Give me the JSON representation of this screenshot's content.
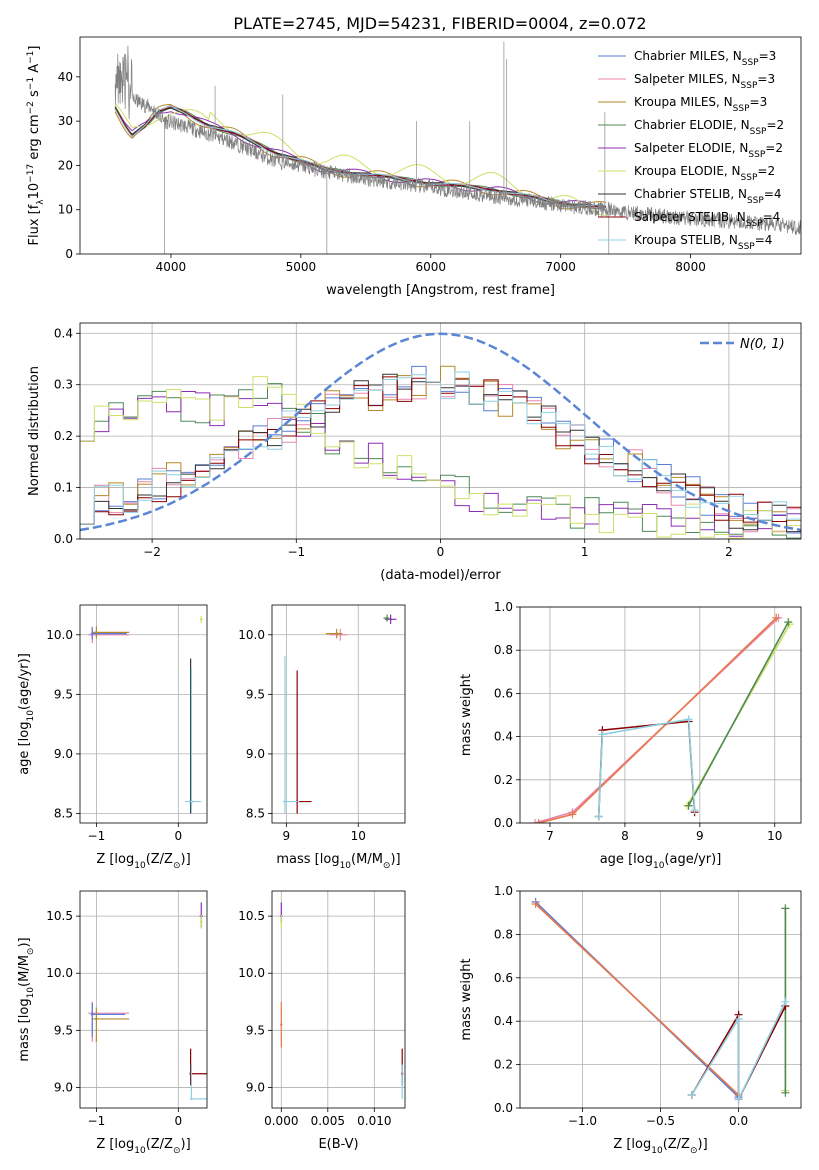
{
  "figure": {
    "title": "PLATE=2745, MJD=54231, FIBERID=0004, z=0.072"
  },
  "legend_entries": [
    {
      "label": "Chabrier MILES, N",
      "sub": "SSP",
      "suffix": "=3",
      "color": "#5b7bd5"
    },
    {
      "label": "Salpeter MILES, N",
      "sub": "SSP",
      "suffix": "=3",
      "color": "#e887b2"
    },
    {
      "label": "Kroupa MILES, N",
      "sub": "SSP",
      "suffix": "=3",
      "color": "#b58a2a"
    },
    {
      "label": "Chabrier ELODIE, N",
      "sub": "SSP",
      "suffix": "=2",
      "color": "#4f8a55"
    },
    {
      "label": "Salpeter ELODIE, N",
      "sub": "SSP",
      "suffix": "=2",
      "color": "#8e2fb3"
    },
    {
      "label": "Kroupa ELODIE, N",
      "sub": "SSP",
      "suffix": "=2",
      "color": "#cfe06a"
    },
    {
      "label": "Chabrier STELIB, N",
      "sub": "SSP",
      "suffix": "=4",
      "color": "#333333"
    },
    {
      "label": "Salpeter STELIB, N",
      "sub": "SSP",
      "suffix": "=4",
      "color": "#8b0000"
    },
    {
      "label": "Kroupa STELIB, N",
      "sub": "SSP",
      "suffix": "=4",
      "color": "#8fd0e0"
    }
  ],
  "chart_data": [
    {
      "id": "spectrum",
      "type": "line",
      "xlabel": "wavelength [Angstrom, rest frame]",
      "ylabel": "Flux [f",
      "ylabel_sub": "λ",
      "ylabel_tail": "10",
      "ylabel_sup": "−17",
      "ylabel_end": " erg cm",
      "ylabel_sup2": "−2",
      "ylabel_end2": " s",
      "ylabel_sup3": "−1",
      "ylabel_end3": " A",
      "ylabel_sup4": "−1",
      "ylabel_close": "]",
      "xlim": [
        3300,
        8850
      ],
      "ylim": [
        0,
        49
      ],
      "xticks": [
        4000,
        5000,
        6000,
        7000,
        8000
      ],
      "yticks": [
        0,
        10,
        20,
        30,
        40
      ],
      "grid": false,
      "legend": "top-right",
      "data_color": "#808080",
      "data_knots": [
        [
          3570,
          38
        ],
        [
          3700,
          35
        ],
        [
          3850,
          33
        ],
        [
          3950,
          30
        ],
        [
          4100,
          29
        ],
        [
          4300,
          27
        ],
        [
          4500,
          25
        ],
        [
          4800,
          21
        ],
        [
          5000,
          20
        ],
        [
          5200,
          18.5
        ],
        [
          5500,
          17
        ],
        [
          6000,
          15
        ],
        [
          6500,
          13
        ],
        [
          7000,
          11
        ],
        [
          7500,
          9.5
        ],
        [
          8000,
          8
        ],
        [
          8500,
          7
        ],
        [
          8850,
          6
        ]
      ],
      "model_knots": [
        [
          3570,
          33
        ],
        [
          3650,
          29
        ],
        [
          3700,
          27
        ],
        [
          3800,
          29
        ],
        [
          3900,
          32
        ],
        [
          4000,
          33
        ],
        [
          4100,
          32
        ],
        [
          4300,
          29
        ],
        [
          4500,
          27
        ],
        [
          4800,
          23
        ],
        [
          5000,
          21
        ],
        [
          5200,
          19
        ],
        [
          5500,
          18
        ],
        [
          6000,
          16
        ],
        [
          6500,
          14.5
        ],
        [
          6750,
          13
        ],
        [
          7000,
          11.5
        ],
        [
          7350,
          10.5
        ]
      ]
    },
    {
      "id": "residuals",
      "type": "histogram",
      "xlabel": "(data-model)/error",
      "ylabel": "Normed distribution",
      "xlim": [
        -2.5,
        2.5
      ],
      "ylim": [
        0,
        0.42
      ],
      "xticks": [
        -2,
        -1,
        0,
        1,
        2
      ],
      "yticks": [
        0.0,
        0.1,
        0.2,
        0.3,
        0.4
      ],
      "grid": true,
      "legend": "top-right",
      "gauss_label": "N(0, 1)",
      "gauss_color": "#5b86d4",
      "hist_elodie_knots": [
        [
          -2.5,
          0.22
        ],
        [
          -2.2,
          0.25
        ],
        [
          -2.0,
          0.28
        ],
        [
          -1.6,
          0.25
        ],
        [
          -1.2,
          0.29
        ],
        [
          -0.9,
          0.22
        ],
        [
          -0.6,
          0.17
        ],
        [
          -0.3,
          0.15
        ],
        [
          0.0,
          0.11
        ],
        [
          0.3,
          0.08
        ],
        [
          0.6,
          0.07
        ],
        [
          1.0,
          0.05
        ],
        [
          1.4,
          0.04
        ],
        [
          1.8,
          0.035
        ],
        [
          2.2,
          0.03
        ],
        [
          2.5,
          0.03
        ]
      ],
      "hist_other_knots": [
        [
          -2.5,
          0.06
        ],
        [
          -2.2,
          0.08
        ],
        [
          -2.0,
          0.1
        ],
        [
          -1.7,
          0.13
        ],
        [
          -1.4,
          0.17
        ],
        [
          -1.1,
          0.21
        ],
        [
          -0.8,
          0.25
        ],
        [
          -0.5,
          0.28
        ],
        [
          -0.2,
          0.3
        ],
        [
          0.0,
          0.31
        ],
        [
          0.3,
          0.29
        ],
        [
          0.6,
          0.25
        ],
        [
          0.9,
          0.2
        ],
        [
          1.2,
          0.16
        ],
        [
          1.5,
          0.12
        ],
        [
          1.8,
          0.08
        ],
        [
          2.1,
          0.05
        ],
        [
          2.5,
          0.04
        ]
      ]
    },
    {
      "id": "age_vs_Z",
      "type": "errorbar",
      "xlabel": "Z [log",
      "xlabel_sub": "10",
      "xlabel_mid": "(Z/Z",
      "xlabel_sub2": "⊙",
      "xlabel_end": ")]",
      "ylabel": "age  [log",
      "ylabel_sub": "10",
      "ylabel_end": "(age/yr)]",
      "xlim": [
        -1.2,
        0.35
      ],
      "ylim": [
        8.42,
        10.25
      ],
      "xticks": [
        -1,
        0
      ],
      "yticks": [
        8.5,
        9.0,
        9.5,
        10.0
      ],
      "grid": true,
      "points": [
        {
          "x": -1.05,
          "y": 10.0,
          "xerr": [
            0.05,
            0.45
          ],
          "yerr": [
            0.07,
            0.07
          ],
          "c": "#e887b2"
        },
        {
          "x": -1.0,
          "y": 10.02,
          "xerr": [
            0.05,
            0.4
          ],
          "yerr": [
            0.05,
            0.05
          ],
          "c": "#b58a2a"
        },
        {
          "x": -1.05,
          "y": 10.01,
          "xerr": [
            0.02,
            0.42
          ],
          "yerr": [
            0.05,
            0.05
          ],
          "c": "#5b7bd5"
        },
        {
          "x": 0.28,
          "y": 10.13,
          "xerr": [
            0.02,
            0.02
          ],
          "yerr": [
            0.03,
            0.03
          ],
          "c": "#cfe06a"
        },
        {
          "x": 0.15,
          "y": 8.6,
          "xerr": [
            0.02,
            0.04
          ],
          "yerr": [
            0.1,
            1.2
          ],
          "c": "#333333"
        },
        {
          "x": 0.16,
          "y": 8.6,
          "xerr": [
            0.08,
            0.12
          ],
          "yerr": [
            0.1,
            1.12
          ],
          "c": "#8fd0e0"
        }
      ]
    },
    {
      "id": "age_vs_mass",
      "type": "errorbar",
      "xlabel": "mass [log",
      "xlabel_sub": "10",
      "xlabel_mid": "(M/M",
      "xlabel_sub2": "⊙",
      "xlabel_end": ")]",
      "xlim": [
        8.8,
        10.65
      ],
      "ylim": [
        8.42,
        10.25
      ],
      "xticks": [
        9,
        10
      ],
      "yticks": [
        8.5,
        9.0,
        9.5,
        10.0
      ],
      "grid": true,
      "points": [
        {
          "x": 9.75,
          "y": 10.0,
          "xerr": [
            0.15,
            0.1
          ],
          "yerr": [
            0.05,
            0.05
          ],
          "c": "#e887b2"
        },
        {
          "x": 9.7,
          "y": 10.01,
          "xerr": [
            0.15,
            0.08
          ],
          "yerr": [
            0.04,
            0.04
          ],
          "c": "#b58a2a"
        },
        {
          "x": 10.45,
          "y": 10.13,
          "xerr": [
            0.08,
            0.08
          ],
          "yerr": [
            0.04,
            0.04
          ],
          "c": "#8e2fb3"
        },
        {
          "x": 10.4,
          "y": 10.14,
          "xerr": [
            0.05,
            0.03
          ],
          "yerr": [
            0.03,
            0.03
          ],
          "c": "#4f8a55"
        },
        {
          "x": 9.15,
          "y": 8.6,
          "xerr": [
            0.02,
            0.2
          ],
          "yerr": [
            0.1,
            1.1
          ],
          "c": "#8b0000"
        },
        {
          "x": 8.98,
          "y": 8.6,
          "xerr": [
            0.03,
            0.2
          ],
          "yerr": [
            0.1,
            1.22
          ],
          "c": "#8fd0e0"
        }
      ]
    },
    {
      "id": "weight_vs_age",
      "type": "line",
      "xlabel": "age  [log",
      "xlabel_sub": "10",
      "xlabel_end": "(age/yr)]",
      "ylabel": "mass weight",
      "xlim": [
        6.6,
        10.35
      ],
      "ylim": [
        0,
        1.0
      ],
      "xticks": [
        7,
        8,
        9,
        10
      ],
      "yticks": [
        0.0,
        0.2,
        0.4,
        0.6,
        0.8,
        1.0
      ],
      "grid": true,
      "lines": [
        {
          "c": "#cfe06a",
          "pts": [
            [
              8.83,
              0.08
            ],
            [
              10.2,
              0.92
            ]
          ]
        },
        {
          "c": "#4f8a55",
          "pts": [
            [
              8.85,
              0.08
            ],
            [
              10.18,
              0.93
            ]
          ]
        },
        {
          "c": "#e887b2",
          "pts": [
            [
              6.8,
              0.0
            ],
            [
              7.3,
              0.05
            ],
            [
              10.05,
              0.95
            ]
          ]
        },
        {
          "c": "#e8784a",
          "pts": [
            [
              6.85,
              0.0
            ],
            [
              7.3,
              0.04
            ],
            [
              10.02,
              0.95
            ]
          ]
        },
        {
          "c": "#8b0000",
          "pts": [
            [
              7.65,
              0.03
            ],
            [
              7.7,
              0.43
            ],
            [
              8.85,
              0.47
            ],
            [
              8.93,
              0.05
            ]
          ]
        },
        {
          "c": "#8fd0e0",
          "pts": [
            [
              7.65,
              0.03
            ],
            [
              7.7,
              0.41
            ],
            [
              8.85,
              0.48
            ],
            [
              8.93,
              0.06
            ]
          ]
        }
      ]
    },
    {
      "id": "mass_vs_Z",
      "type": "errorbar",
      "xlabel": "Z [log",
      "xlabel_sub": "10",
      "xlabel_mid": "(Z/Z",
      "xlabel_sub2": "⊙",
      "xlabel_end": ")]",
      "ylabel": "mass [log",
      "ylabel_sub": "10",
      "ylabel_mid": "(M/M",
      "ylabel_sub2": "⊙",
      "ylabel_end": ")]",
      "xlim": [
        -1.2,
        0.35
      ],
      "ylim": [
        8.82,
        10.72
      ],
      "xticks": [
        -1,
        0
      ],
      "yticks": [
        9.0,
        9.5,
        10.0,
        10.5
      ],
      "grid": true,
      "points": [
        {
          "x": -1.05,
          "y": 9.65,
          "xerr": [
            0.05,
            0.45
          ],
          "yerr": [
            0.25,
            0.1
          ],
          "c": "#e887b2"
        },
        {
          "x": -1.0,
          "y": 9.6,
          "xerr": [
            0.05,
            0.4
          ],
          "yerr": [
            0.2,
            0.1
          ],
          "c": "#b58a2a"
        },
        {
          "x": -1.05,
          "y": 9.64,
          "xerr": [
            0.02,
            0.4
          ],
          "yerr": [
            0.2,
            0.1
          ],
          "c": "#5b7bd5"
        },
        {
          "x": 0.28,
          "y": 10.5,
          "xerr": [
            0.02,
            0.02
          ],
          "yerr": [
            0.1,
            0.12
          ],
          "c": "#8e2fb3"
        },
        {
          "x": 0.28,
          "y": 10.45,
          "xerr": [
            0.02,
            0.02
          ],
          "yerr": [
            0.06,
            0.06
          ],
          "c": "#cfe06a"
        },
        {
          "x": 0.15,
          "y": 9.12,
          "xerr": [
            0.0,
            0.2
          ],
          "yerr": [
            0.1,
            0.22
          ],
          "c": "#8b0000"
        },
        {
          "x": 0.16,
          "y": 8.9,
          "xerr": [
            0.0,
            0.2
          ],
          "yerr": [
            0.0,
            0.3
          ],
          "c": "#8fd0e0"
        }
      ]
    },
    {
      "id": "mass_vs_EBV",
      "type": "errorbar",
      "xlabel": "E(B-V)",
      "xlim": [
        -0.001,
        0.0133
      ],
      "ylim": [
        8.82,
        10.72
      ],
      "xticks": [
        0.0,
        0.005,
        0.01
      ],
      "xticklabels": [
        "0.000",
        "0.005",
        "0.010"
      ],
      "yticks": [
        9.0,
        9.5,
        10.0,
        10.5
      ],
      "grid": true,
      "points": [
        {
          "x": 0.0,
          "y": 10.5,
          "xerr": [
            0.0,
            0.0
          ],
          "yerr": [
            0.06,
            0.12
          ],
          "c": "#8e2fb3"
        },
        {
          "x": 0.0,
          "y": 10.45,
          "xerr": [
            0.0,
            0.0
          ],
          "yerr": [
            0.06,
            0.06
          ],
          "c": "#cfe06a"
        },
        {
          "x": 0.0,
          "y": 9.55,
          "xerr": [
            0.0,
            0.0
          ],
          "yerr": [
            0.2,
            0.2
          ],
          "c": "#e8784a"
        },
        {
          "x": 0.013,
          "y": 9.12,
          "xerr": [
            0.0,
            0.0
          ],
          "yerr": [
            0.1,
            0.22
          ],
          "c": "#8b0000"
        },
        {
          "x": 0.013,
          "y": 9.05,
          "xerr": [
            0.0,
            0.0
          ],
          "yerr": [
            0.15,
            0.15
          ],
          "c": "#8fd0e0"
        }
      ]
    },
    {
      "id": "weight_vs_Z",
      "type": "line",
      "xlabel": "Z [log",
      "xlabel_sub": "10",
      "xlabel_mid": "(Z/Z",
      "xlabel_sub2": "⊙",
      "xlabel_end": ")]",
      "ylabel": "mass weight",
      "xlim": [
        -1.4,
        0.4
      ],
      "ylim": [
        0,
        1.0
      ],
      "xticks": [
        -1.0,
        -0.5,
        0.0
      ],
      "xticklabels": [
        "−1.0",
        "−0.5",
        "0.0"
      ],
      "yticks": [
        0.0,
        0.2,
        0.4,
        0.6,
        0.8,
        1.0
      ],
      "grid": true,
      "lines": [
        {
          "c": "#cfe06a",
          "pts": [
            [
              0.3,
              0.08
            ],
            [
              0.3,
              0.92
            ]
          ]
        },
        {
          "c": "#4f8a55",
          "pts": [
            [
              0.3,
              0.07
            ],
            [
              0.3,
              0.92
            ]
          ]
        },
        {
          "c": "#5b7bd5",
          "pts": [
            [
              -1.3,
              0.95
            ],
            [
              0.0,
              0.05
            ]
          ]
        },
        {
          "c": "#e8784a",
          "pts": [
            [
              -1.3,
              0.94
            ],
            [
              0.0,
              0.06
            ]
          ]
        },
        {
          "c": "#8b0000",
          "pts": [
            [
              -0.3,
              0.06
            ],
            [
              0.0,
              0.43
            ],
            [
              0.0,
              0.04
            ],
            [
              0.3,
              0.47
            ]
          ]
        },
        {
          "c": "#8fd0e0",
          "pts": [
            [
              -0.3,
              0.06
            ],
            [
              0.0,
              0.41
            ],
            [
              0.0,
              0.04
            ],
            [
              0.3,
              0.49
            ]
          ]
        }
      ]
    }
  ]
}
